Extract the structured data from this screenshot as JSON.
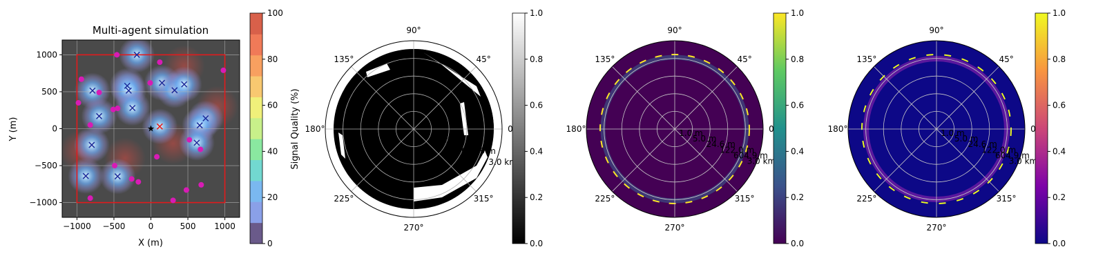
{
  "chart_data": [
    {
      "type": "heatmap",
      "title": "Multi-agent simulation",
      "xlabel": "X (m)",
      "ylabel": "Y (m)",
      "xlim": [
        -1200,
        1200
      ],
      "ylim": [
        -1200,
        1200
      ],
      "xticks": [
        -1000,
        -500,
        0,
        500,
        1000
      ],
      "xtick_labels": [
        "−1000",
        "−500",
        "0",
        "500",
        "1000"
      ],
      "yticks": [
        -1000,
        -500,
        0,
        500,
        1000
      ],
      "ytick_labels": [
        "−1000",
        "−500",
        "0",
        "500",
        "1000"
      ],
      "grid": true,
      "boundary": {
        "xmin": -1000,
        "xmax": 1000,
        "ymin": -1000,
        "ymax": 1000,
        "color": "#e31a1c"
      },
      "colorbar": {
        "label": "Signal Quality (%)",
        "range": [
          0,
          100
        ],
        "ticks": [
          "0",
          "20",
          "40",
          "60",
          "80",
          "100"
        ],
        "levels": [
          "#6a5a8a",
          "#8aa0e8",
          "#7ab8f0",
          "#72d8d0",
          "#8ae8a0",
          "#c8f08a",
          "#f0f07a",
          "#f8c870",
          "#f8a060",
          "#f07a58",
          "#d8604a"
        ]
      },
      "agents": [
        {
          "x": -790,
          "y": 515
        },
        {
          "x": -700,
          "y": 170
        },
        {
          "x": -800,
          "y": -220
        },
        {
          "x": -880,
          "y": -640
        },
        {
          "x": -450,
          "y": -645
        },
        {
          "x": -320,
          "y": 580
        },
        {
          "x": -300,
          "y": 515
        },
        {
          "x": -250,
          "y": 280
        },
        {
          "x": -190,
          "y": 1000
        },
        {
          "x": 150,
          "y": 620
        },
        {
          "x": 320,
          "y": 520
        },
        {
          "x": 450,
          "y": 600
        },
        {
          "x": 740,
          "y": 140
        },
        {
          "x": 660,
          "y": 45
        },
        {
          "x": 620,
          "y": -190
        }
      ],
      "highlight_agent": {
        "x": 120,
        "y": 30
      },
      "base_station": {
        "x": 0,
        "y": 0
      },
      "targets": [
        {
          "x": -460,
          "y": 1000
        },
        {
          "x": 120,
          "y": 900
        },
        {
          "x": 980,
          "y": 790
        },
        {
          "x": -940,
          "y": 670
        },
        {
          "x": -700,
          "y": 490
        },
        {
          "x": -10,
          "y": 620
        },
        {
          "x": -980,
          "y": 350
        },
        {
          "x": -510,
          "y": 260
        },
        {
          "x": -450,
          "y": 275
        },
        {
          "x": -820,
          "y": 50
        },
        {
          "x": 520,
          "y": -150
        },
        {
          "x": 670,
          "y": -280
        },
        {
          "x": 80,
          "y": -380
        },
        {
          "x": -490,
          "y": -500
        },
        {
          "x": -260,
          "y": -680
        },
        {
          "x": -170,
          "y": -720
        },
        {
          "x": 680,
          "y": -760
        },
        {
          "x": 480,
          "y": -830
        },
        {
          "x": -820,
          "y": -940
        },
        {
          "x": 300,
          "y": -970
        }
      ]
    },
    {
      "type": "heatmap",
      "projection": "polar",
      "colormap": "gray",
      "colorbar": {
        "range": [
          0,
          1
        ],
        "ticks": [
          "0.0",
          "0.2",
          "0.4",
          "0.6",
          "0.8",
          "1.0"
        ]
      },
      "angle_labels": [
        "0°",
        "45°",
        "90°",
        "135°",
        "180°",
        "225°",
        "270°",
        "315°"
      ],
      "radial_labels": [
        "15.0 m",
        "604.9 m",
        "3.0 km"
      ],
      "coverage_note": "binary coverage map: black = 0, white = 1"
    },
    {
      "type": "heatmap",
      "projection": "polar",
      "colormap": "viridis",
      "colorbar": {
        "range": [
          0,
          1
        ],
        "ticks": [
          "0.0",
          "0.2",
          "0.4",
          "0.6",
          "0.8",
          "1.0"
        ]
      },
      "angle_labels": [
        "0°",
        "45°",
        "90°",
        "135°",
        "180°",
        "225°",
        "270°",
        "315°"
      ],
      "radial_labels": [
        "1.0 m",
        "5.0 m",
        "24.6 m",
        "122.0 m",
        "604.9 m",
        "3.0 km"
      ]
    },
    {
      "type": "heatmap",
      "projection": "polar",
      "colormap": "plasma",
      "colorbar": {
        "range": [
          0,
          1
        ],
        "ticks": [
          "0.0",
          "0.2",
          "0.4",
          "0.6",
          "0.8",
          "1.0"
        ]
      },
      "angle_labels": [
        "0°",
        "45°",
        "90°",
        "135°",
        "180°",
        "225°",
        "270°",
        "315°"
      ],
      "radial_labels": [
        "1.0 m",
        "5.0 m",
        "24.6 m",
        "122.0 m",
        "604.9 m",
        "3.0 km"
      ]
    }
  ]
}
